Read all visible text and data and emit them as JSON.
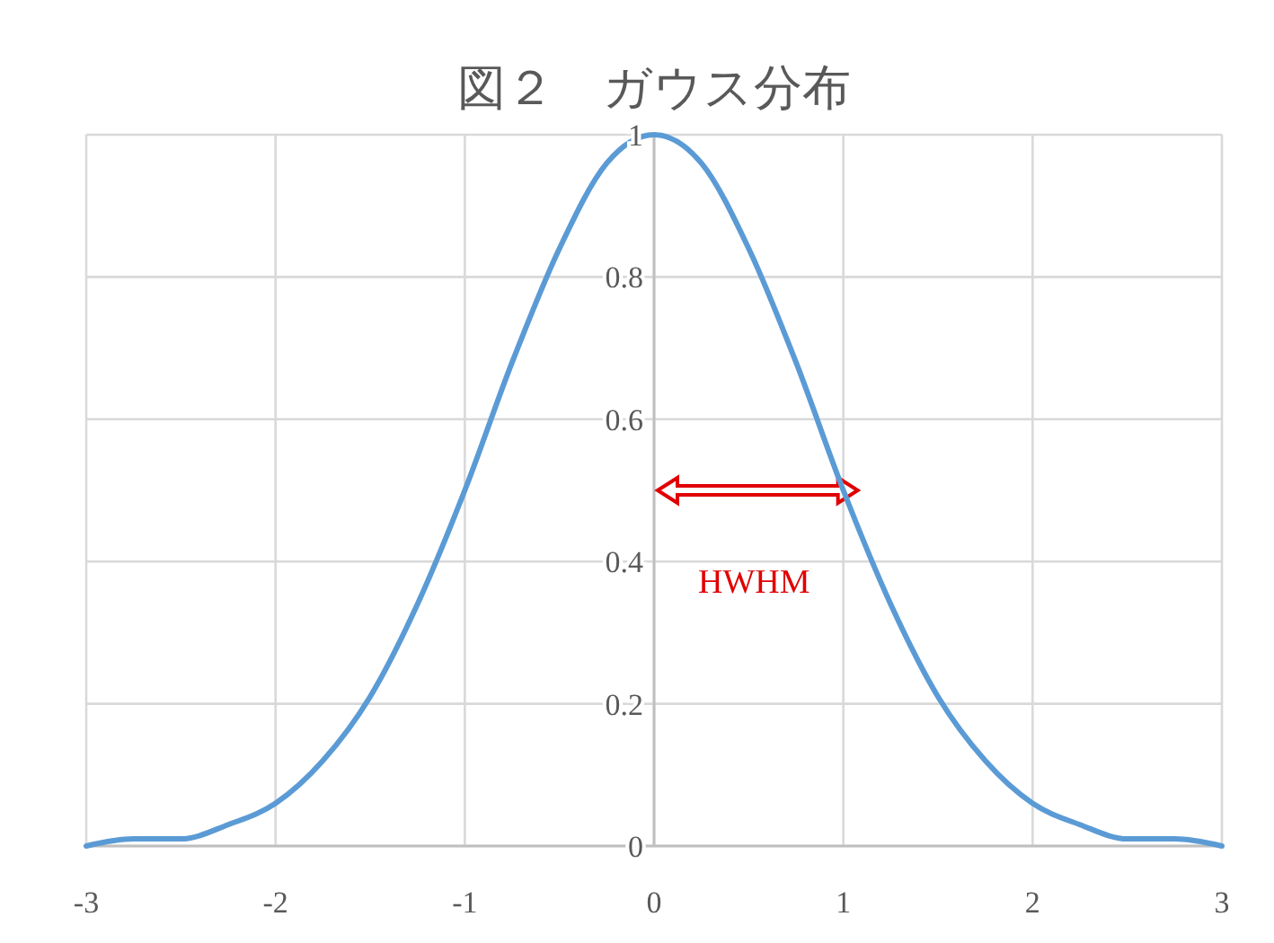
{
  "chart_data": {
    "type": "line",
    "title": "図２　ガウス分布",
    "x": [
      -3,
      -2.75,
      -2.5,
      -2.25,
      -2,
      -1.75,
      -1.5,
      -1.25,
      -1,
      -0.75,
      -0.5,
      -0.25,
      0,
      0.25,
      0.5,
      0.75,
      1,
      1.25,
      1.5,
      1.75,
      2,
      2.25,
      2.5,
      2.75,
      3
    ],
    "series": [
      {
        "color": "#5b9bd5",
        "values": [
          0,
          0.01,
          0.01,
          0.03,
          0.06,
          0.12,
          0.21,
          0.34,
          0.5,
          0.68,
          0.84,
          0.96,
          1,
          0.96,
          0.84,
          0.68,
          0.5,
          0.34,
          0.21,
          0.12,
          0.06,
          0.03,
          0.01,
          0.01,
          0
        ]
      }
    ],
    "xlim": [
      -3,
      3
    ],
    "xticks": [
      -3,
      -2,
      -1,
      0,
      1,
      2,
      3
    ],
    "ylim": [
      0,
      1
    ],
    "yticks": [
      0,
      0.2,
      0.4,
      0.6,
      0.8,
      1
    ],
    "grid": true,
    "marker": "none",
    "line_style": "solid",
    "annotations": [
      {
        "text": "HWHM",
        "x": 1,
        "y": 0.5
      }
    ]
  }
}
